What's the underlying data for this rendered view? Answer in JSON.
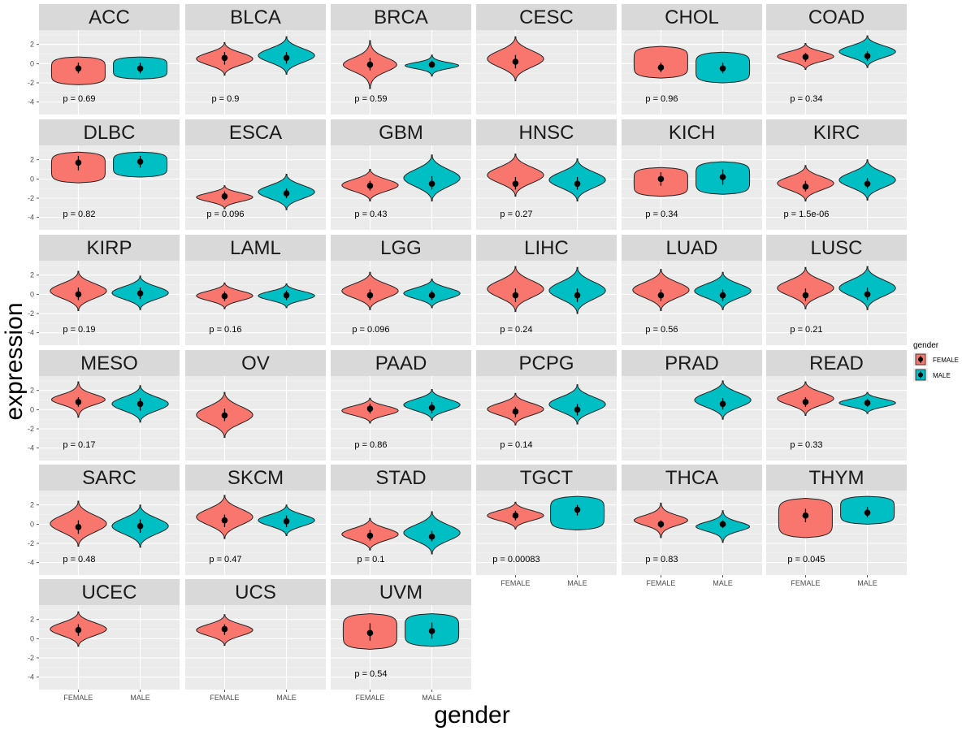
{
  "chart_data": {
    "type": "violin",
    "xlabel": "gender",
    "ylabel": "expression",
    "yticks": [
      2,
      0,
      -2,
      -4
    ],
    "ylim": [
      -5.3,
      3.5
    ],
    "categories": [
      "FEMALE",
      "MALE"
    ],
    "legend": {
      "title": "gender",
      "position": "right",
      "entries": [
        {
          "label": "FEMALE",
          "color": "#F8766D"
        },
        {
          "label": "MALE",
          "color": "#00BFC4"
        }
      ]
    },
    "panels": [
      {
        "name": "ACC",
        "p": "p = 0.69",
        "female": {
          "median": -0.5,
          "min": -2.2,
          "max": 0.7,
          "q1": -1.0,
          "q3": 0.1,
          "shape": "flat"
        },
        "male": {
          "median": -0.5,
          "min": -1.6,
          "max": 0.7,
          "q1": -1.0,
          "q3": 0.1,
          "shape": "flat"
        }
      },
      {
        "name": "BLCA",
        "p": "p = 0.9",
        "female": {
          "median": 0.6,
          "min": -1.2,
          "max": 2.2,
          "q1": -0.1,
          "q3": 1.2,
          "shape": "normal"
        },
        "male": {
          "median": 0.6,
          "min": -1.1,
          "max": 2.8,
          "q1": 0.0,
          "q3": 1.2,
          "shape": "normal"
        }
      },
      {
        "name": "BRCA",
        "p": "p = 0.59",
        "female": {
          "median": -0.1,
          "min": -2.6,
          "max": 2.4,
          "q1": -0.7,
          "q3": 0.6,
          "shape": "peaked"
        },
        "male": {
          "median": -0.1,
          "min": -1.3,
          "max": 0.9,
          "q1": -0.4,
          "q3": 0.3,
          "shape": "peaked"
        }
      },
      {
        "name": "CESC",
        "p": "",
        "female": {
          "median": 0.2,
          "min": -1.8,
          "max": 2.8,
          "q1": -0.5,
          "q3": 0.9,
          "shape": "normal"
        },
        "male": null
      },
      {
        "name": "CHOL",
        "p": "p = 0.96",
        "female": {
          "median": -0.4,
          "min": -1.5,
          "max": 1.8,
          "q1": -0.9,
          "q3": 0.1,
          "shape": "flat"
        },
        "male": {
          "median": -0.5,
          "min": -2.0,
          "max": 1.2,
          "q1": -1.0,
          "q3": 0.1,
          "shape": "flat"
        }
      },
      {
        "name": "COAD",
        "p": "p = 0.34",
        "female": {
          "median": 0.7,
          "min": -0.6,
          "max": 2.1,
          "q1": 0.2,
          "q3": 1.1,
          "shape": "normal"
        },
        "male": {
          "median": 0.8,
          "min": -0.4,
          "max": 2.9,
          "q1": 0.3,
          "q3": 1.3,
          "shape": "normal"
        }
      },
      {
        "name": "DLBC",
        "p": "p = 0.82",
        "female": {
          "median": 1.7,
          "min": -0.4,
          "max": 2.8,
          "q1": 0.9,
          "q3": 2.4,
          "shape": "flat"
        },
        "male": {
          "median": 1.8,
          "min": 0.2,
          "max": 2.8,
          "q1": 1.2,
          "q3": 2.4,
          "shape": "flat"
        }
      },
      {
        "name": "ESCA",
        "p": "p = 0.096",
        "female": {
          "median": -1.8,
          "min": -3.1,
          "max": -0.7,
          "q1": -2.2,
          "q3": -1.3,
          "shape": "normal"
        },
        "male": {
          "median": -1.5,
          "min": -3.2,
          "max": 0.5,
          "q1": -2.0,
          "q3": -1.0,
          "shape": "normal"
        }
      },
      {
        "name": "GBM",
        "p": "p = 0.43",
        "female": {
          "median": -0.7,
          "min": -2.3,
          "max": 1.0,
          "q1": -1.2,
          "q3": -0.2,
          "shape": "normal"
        },
        "male": {
          "median": -0.5,
          "min": -2.3,
          "max": 2.5,
          "q1": -1.1,
          "q3": 0.3,
          "shape": "normal"
        }
      },
      {
        "name": "HNSC",
        "p": "p = 0.27",
        "female": {
          "median": -0.5,
          "min": -1.8,
          "max": 2.6,
          "q1": -1.1,
          "q3": 0.2,
          "shape": "normal"
        },
        "male": {
          "median": -0.5,
          "min": -2.3,
          "max": 2.1,
          "q1": -1.1,
          "q3": 0.2,
          "shape": "normal"
        }
      },
      {
        "name": "KICH",
        "p": "p = 0.34",
        "female": {
          "median": 0.0,
          "min": -1.8,
          "max": 1.2,
          "q1": -0.7,
          "q3": 0.7,
          "shape": "flat"
        },
        "male": {
          "median": 0.2,
          "min": -1.6,
          "max": 1.8,
          "q1": -0.6,
          "q3": 1.0,
          "shape": "flat"
        }
      },
      {
        "name": "KIRC",
        "p": "p = 1.5e-06",
        "female": {
          "median": -0.8,
          "min": -2.3,
          "max": 1.4,
          "q1": -1.3,
          "q3": -0.2,
          "shape": "normal"
        },
        "male": {
          "median": -0.5,
          "min": -2.2,
          "max": 2.0,
          "q1": -1.0,
          "q3": 0.1,
          "shape": "normal"
        }
      },
      {
        "name": "KIRP",
        "p": "p = 0.19",
        "female": {
          "median": 0.0,
          "min": -1.7,
          "max": 2.4,
          "q1": -0.6,
          "q3": 0.7,
          "shape": "normal"
        },
        "male": {
          "median": 0.1,
          "min": -1.6,
          "max": 1.9,
          "q1": -0.5,
          "q3": 0.7,
          "shape": "normal"
        }
      },
      {
        "name": "LAML",
        "p": "p = 0.16",
        "female": {
          "median": -0.2,
          "min": -1.5,
          "max": 1.2,
          "q1": -0.7,
          "q3": 0.3,
          "shape": "normal"
        },
        "male": {
          "median": -0.1,
          "min": -1.4,
          "max": 1.1,
          "q1": -0.6,
          "q3": 0.4,
          "shape": "normal"
        }
      },
      {
        "name": "LGG",
        "p": "p = 0.096",
        "female": {
          "median": -0.1,
          "min": -1.6,
          "max": 2.3,
          "q1": -0.6,
          "q3": 0.5,
          "shape": "normal"
        },
        "male": {
          "median": -0.1,
          "min": -1.4,
          "max": 1.6,
          "q1": -0.6,
          "q3": 0.4,
          "shape": "normal"
        }
      },
      {
        "name": "LIHC",
        "p": "p = 0.24",
        "female": {
          "median": -0.1,
          "min": -1.8,
          "max": 2.9,
          "q1": -0.8,
          "q3": 0.6,
          "shape": "normal"
        },
        "male": {
          "median": -0.1,
          "min": -2.0,
          "max": 2.8,
          "q1": -0.8,
          "q3": 0.6,
          "shape": "normal"
        }
      },
      {
        "name": "LUAD",
        "p": "p = 0.56",
        "female": {
          "median": -0.1,
          "min": -1.7,
          "max": 2.6,
          "q1": -0.7,
          "q3": 0.5,
          "shape": "normal"
        },
        "male": {
          "median": -0.1,
          "min": -1.6,
          "max": 2.3,
          "q1": -0.7,
          "q3": 0.5,
          "shape": "normal"
        }
      },
      {
        "name": "LUSC",
        "p": "p = 0.21",
        "female": {
          "median": -0.1,
          "min": -1.5,
          "max": 2.8,
          "q1": -0.7,
          "q3": 0.6,
          "shape": "normal"
        },
        "male": {
          "median": 0.0,
          "min": -1.6,
          "max": 2.9,
          "q1": -0.6,
          "q3": 0.7,
          "shape": "normal"
        }
      },
      {
        "name": "MESO",
        "p": "p = 0.17",
        "female": {
          "median": 0.8,
          "min": -0.8,
          "max": 2.9,
          "q1": 0.3,
          "q3": 1.3,
          "shape": "peaked"
        },
        "male": {
          "median": 0.6,
          "min": -1.3,
          "max": 2.5,
          "q1": -0.1,
          "q3": 1.2,
          "shape": "normal"
        }
      },
      {
        "name": "OV",
        "p": "",
        "female": {
          "median": -0.6,
          "min": -2.9,
          "max": 1.8,
          "q1": -1.2,
          "q3": 0.1,
          "shape": "normal"
        },
        "male": null
      },
      {
        "name": "PAAD",
        "p": "p = 0.86",
        "female": {
          "median": 0.1,
          "min": -1.4,
          "max": 1.2,
          "q1": -0.4,
          "q3": 0.6,
          "shape": "normal"
        },
        "male": {
          "median": 0.2,
          "min": -1.1,
          "max": 2.1,
          "q1": -0.4,
          "q3": 0.8,
          "shape": "normal"
        }
      },
      {
        "name": "PCPG",
        "p": "p = 0.14",
        "female": {
          "median": -0.2,
          "min": -1.6,
          "max": 1.7,
          "q1": -0.8,
          "q3": 0.3,
          "shape": "normal"
        },
        "male": {
          "median": 0.0,
          "min": -1.5,
          "max": 2.6,
          "q1": -0.6,
          "q3": 0.6,
          "shape": "normal"
        }
      },
      {
        "name": "PRAD",
        "p": "",
        "female": null,
        "male": {
          "median": 0.6,
          "min": -1.0,
          "max": 3.0,
          "q1": 0.0,
          "q3": 1.2,
          "shape": "normal"
        }
      },
      {
        "name": "READ",
        "p": "p = 0.33",
        "female": {
          "median": 0.8,
          "min": -0.6,
          "max": 2.9,
          "q1": 0.3,
          "q3": 1.3,
          "shape": "normal"
        },
        "male": {
          "median": 0.7,
          "min": -0.4,
          "max": 1.8,
          "q1": 0.3,
          "q3": 1.1,
          "shape": "normal"
        }
      },
      {
        "name": "SARC",
        "p": "p = 0.48",
        "female": {
          "median": -0.3,
          "min": -2.3,
          "max": 2.4,
          "q1": -1.0,
          "q3": 0.4,
          "shape": "normal"
        },
        "male": {
          "median": -0.2,
          "min": -2.4,
          "max": 2.0,
          "q1": -0.9,
          "q3": 0.5,
          "shape": "normal"
        }
      },
      {
        "name": "SKCM",
        "p": "p = 0.47",
        "female": {
          "median": 0.4,
          "min": -1.5,
          "max": 3.0,
          "q1": -0.3,
          "q3": 1.0,
          "shape": "normal"
        },
        "male": {
          "median": 0.3,
          "min": -1.2,
          "max": 2.0,
          "q1": -0.3,
          "q3": 0.9,
          "shape": "normal"
        }
      },
      {
        "name": "STAD",
        "p": "p = 0.1",
        "female": {
          "median": -1.2,
          "min": -2.7,
          "max": 0.6,
          "q1": -1.7,
          "q3": -0.6,
          "shape": "normal"
        },
        "male": {
          "median": -1.3,
          "min": -3.1,
          "max": 1.3,
          "q1": -1.8,
          "q3": -0.7,
          "shape": "normal"
        }
      },
      {
        "name": "TGCT",
        "p": "p = 0.00083",
        "female": {
          "median": 0.9,
          "min": -0.5,
          "max": 2.3,
          "q1": 0.4,
          "q3": 1.4,
          "shape": "normal"
        },
        "male": {
          "median": 1.5,
          "min": -0.6,
          "max": 2.9,
          "q1": 0.9,
          "q3": 2.0,
          "shape": "flat"
        }
      },
      {
        "name": "THCA",
        "p": "p = 0.83",
        "female": {
          "median": 0.0,
          "min": -1.4,
          "max": 2.2,
          "q1": -0.4,
          "q3": 0.4,
          "shape": "peaked"
        },
        "male": {
          "median": 0.0,
          "min": -1.9,
          "max": 1.4,
          "q1": -0.4,
          "q3": 0.4,
          "shape": "peaked"
        }
      },
      {
        "name": "THYM",
        "p": "p = 0.045",
        "female": {
          "median": 0.9,
          "min": -1.4,
          "max": 2.7,
          "q1": 0.2,
          "q3": 1.6,
          "shape": "flat"
        },
        "male": {
          "median": 1.2,
          "min": 0.0,
          "max": 2.9,
          "q1": 0.7,
          "q3": 1.8,
          "shape": "flat"
        }
      },
      {
        "name": "UCEC",
        "p": "",
        "female": {
          "median": 0.9,
          "min": -0.8,
          "max": 2.8,
          "q1": 0.3,
          "q3": 1.5,
          "shape": "normal"
        },
        "male": null
      },
      {
        "name": "UCS",
        "p": "",
        "female": {
          "median": 1.0,
          "min": -0.7,
          "max": 2.5,
          "q1": 0.4,
          "q3": 1.5,
          "shape": "normal"
        },
        "male": null
      },
      {
        "name": "UVM",
        "p": "p = 0.54",
        "female": {
          "median": 0.6,
          "min": -1.1,
          "max": 2.6,
          "q1": -0.2,
          "q3": 1.6,
          "shape": "flat"
        },
        "male": {
          "median": 0.8,
          "min": -0.8,
          "max": 2.6,
          "q1": 0.0,
          "q3": 1.7,
          "shape": "flat"
        }
      }
    ]
  }
}
